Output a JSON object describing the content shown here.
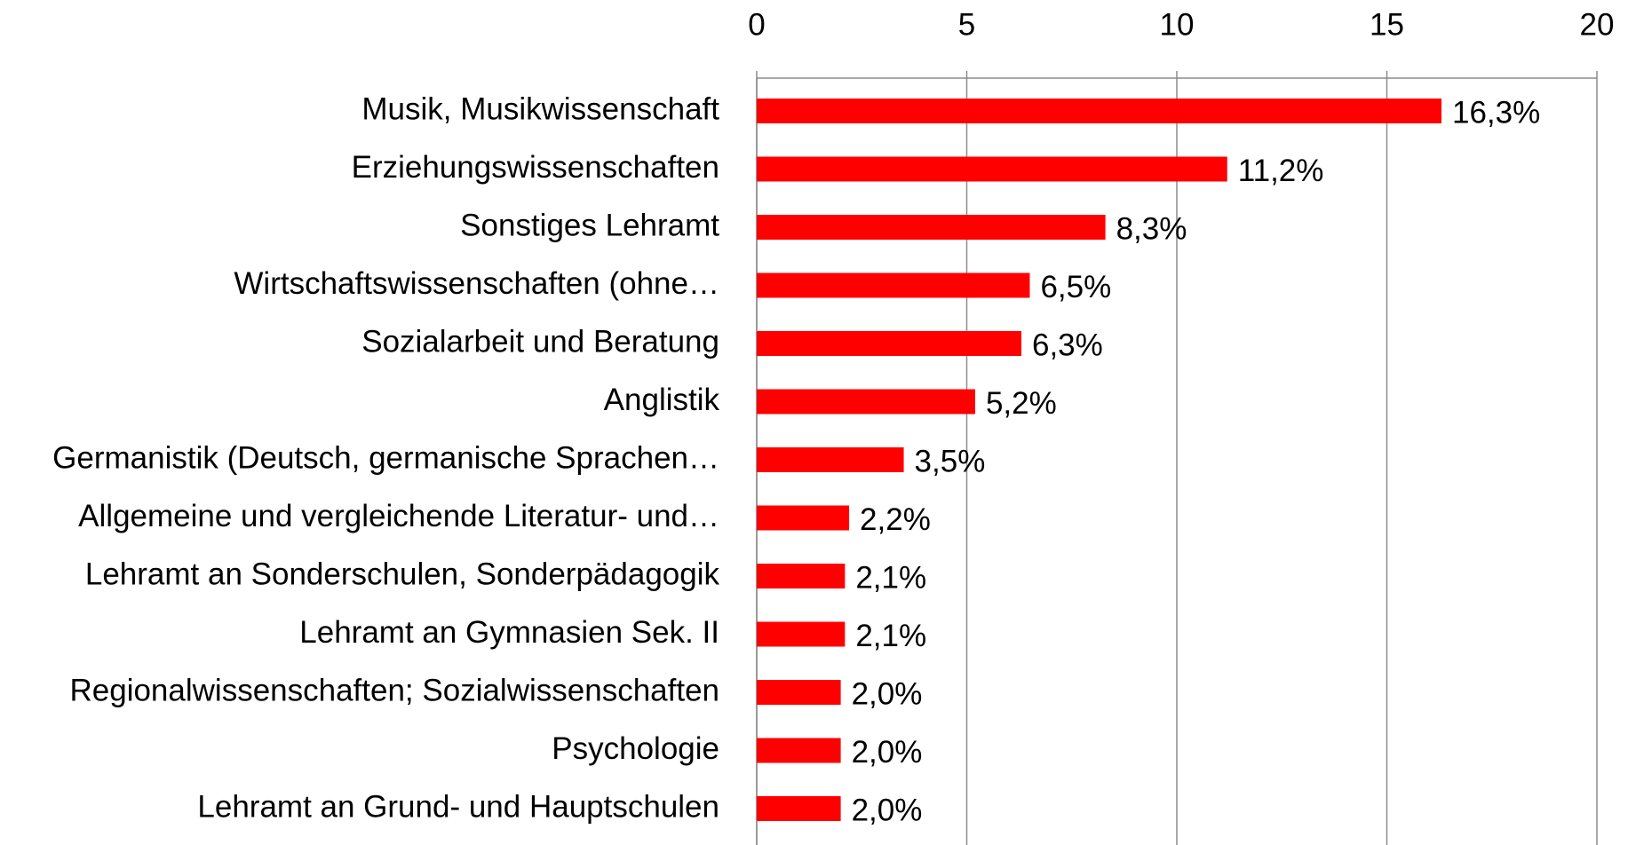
{
  "chart_data": {
    "type": "bar",
    "orientation": "horizontal",
    "categories": [
      "Musik, Musikwissenschaft",
      "Erziehungswissenschaften",
      "Sonstiges Lehramt",
      "Wirtschaftswissenschaften (ohne…",
      "Sozialarbeit und Beratung",
      "Anglistik",
      "Germanistik (Deutsch, germanische Sprachen…",
      "Allgemeine und vergleichende Literatur- und…",
      "Lehramt an Sonderschulen, Sonderpädagogik",
      "Lehramt an Gymnasien Sek. II",
      "Regionalwissenschaften; Sozialwissenschaften",
      "Psychologie",
      "Lehramt an Grund- und Hauptschulen"
    ],
    "values": [
      16.3,
      11.2,
      8.3,
      6.5,
      6.3,
      5.2,
      3.5,
      2.2,
      2.1,
      2.1,
      2.0,
      2.0,
      2.0
    ],
    "value_labels": [
      "16,3%",
      "11,2%",
      "8,3%",
      "6,5%",
      "6,3%",
      "5,2%",
      "3,5%",
      "2,2%",
      "2,1%",
      "2,1%",
      "2,0%",
      "2,0%",
      "2,0%"
    ],
    "color": "#ff0000",
    "xlim": [
      0,
      20
    ],
    "xticks": [
      0,
      5,
      10,
      15,
      20
    ],
    "grid": true
  }
}
